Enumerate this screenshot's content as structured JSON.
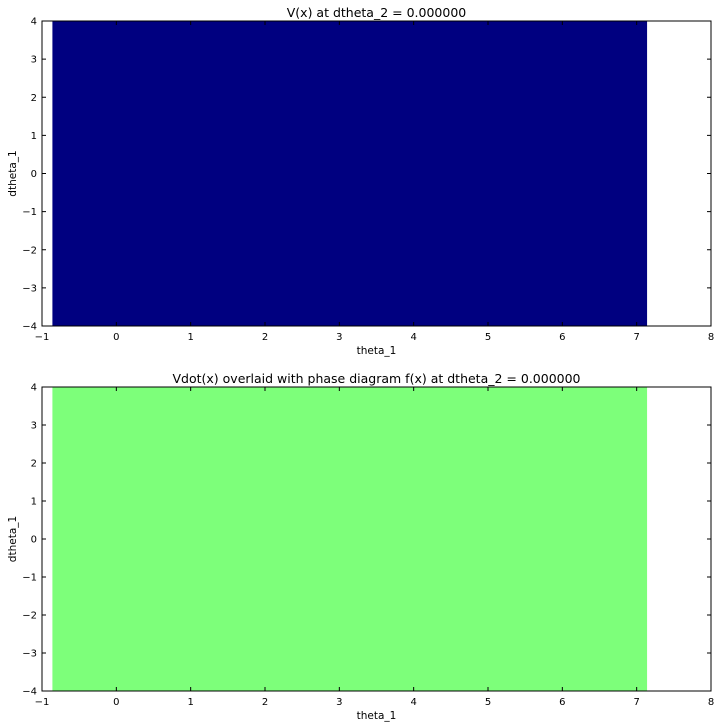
{
  "chart_data": [
    {
      "type": "heatmap",
      "title": "V(x) at dtheta_2 = 0.000000",
      "xlabel": "theta_1",
      "ylabel": "dtheta_1",
      "xlim": [
        -1,
        8
      ],
      "ylim": [
        -4,
        4
      ],
      "xticks": [
        "−1",
        "0",
        "1",
        "2",
        "3",
        "4",
        "5",
        "6",
        "7",
        "8"
      ],
      "yticks": [
        "4",
        "3",
        "2",
        "1",
        "0",
        "−1",
        "−2",
        "−3",
        "−4"
      ],
      "filled_region": {
        "x": [
          -0.86,
          7.14
        ],
        "y": [
          -4,
          4
        ],
        "color": "#000080"
      },
      "grid": false
    },
    {
      "type": "heatmap",
      "title": "Vdot(x) overlaid with phase diagram f(x) at dtheta_2 = 0.000000",
      "xlabel": "theta_1",
      "ylabel": "dtheta_1",
      "xlim": [
        -1,
        8
      ],
      "ylim": [
        -4,
        4
      ],
      "xticks": [
        "−1",
        "0",
        "1",
        "2",
        "3",
        "4",
        "5",
        "6",
        "7",
        "8"
      ],
      "yticks": [
        "4",
        "3",
        "2",
        "1",
        "0",
        "−1",
        "−2",
        "−3",
        "−4"
      ],
      "filled_region": {
        "x": [
          -0.86,
          7.14
        ],
        "y": [
          -4,
          4
        ],
        "color": "#7dff7a"
      },
      "grid": false
    }
  ]
}
